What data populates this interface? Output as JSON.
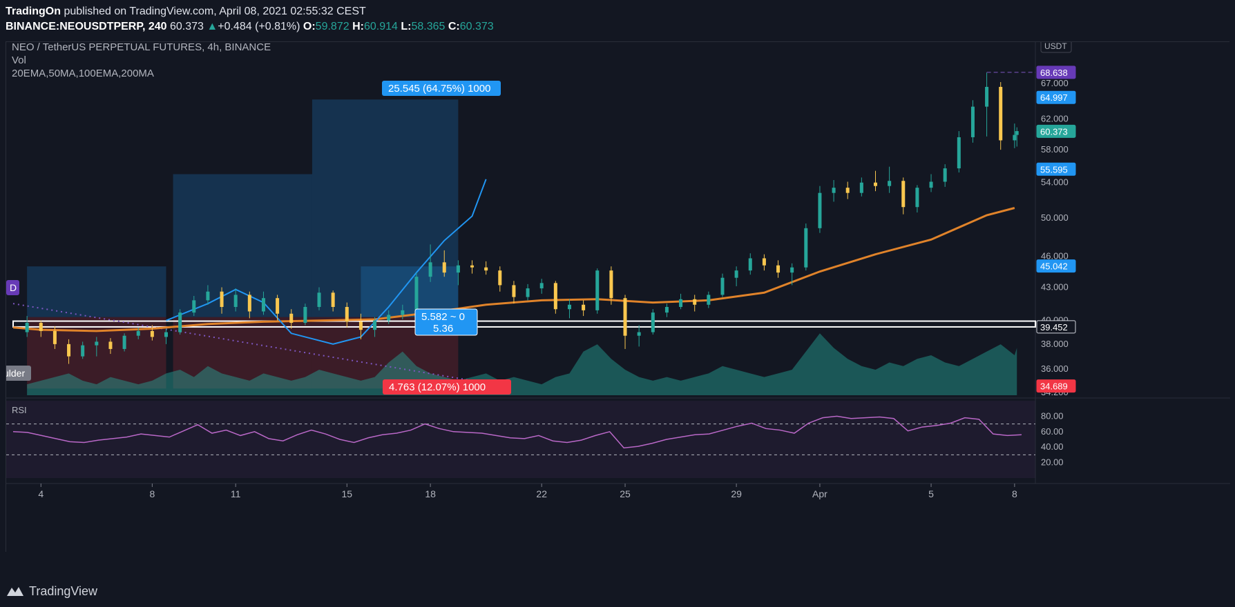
{
  "header": {
    "publisher": "TradingOn",
    "published_text": "published on TradingView.com, April 08, 2021 02:55:32 CEST",
    "symbol": "BINANCE:NEOUSDTPERP, 240",
    "last": "60.373",
    "change_arrow": "▲",
    "change": "+0.484 (+0.81%)",
    "o_label": "O:",
    "o_val": "59.872",
    "h_label": "H:",
    "h_val": "60.914",
    "l_label": "L:",
    "l_val": "58.365",
    "c_label": "C:",
    "c_val": "60.373"
  },
  "legend": {
    "title": "NEO / TetherUS PERPETUAL FUTURES, 4h, BINANCE",
    "vol": "Vol",
    "mas": "20EMA,50MA,100EMA,200MA"
  },
  "currency_button": "USDT",
  "rsi_label": "RSI",
  "d_badge": "D",
  "left_tag": "ulder",
  "footer_brand": "TradingView",
  "colors": {
    "up": "#26a69a",
    "down": "#f9c74f",
    "ema": "#e0832a",
    "blue_curve": "#2196f3",
    "rsi": "#ba68c8",
    "badge_blue": "#2196f3",
    "badge_red": "#f23645",
    "badge_purple": "#673ab7"
  },
  "chart_data": {
    "type": "candlestick",
    "y_ticks": [
      "67.000",
      "62.000",
      "58.000",
      "54.000",
      "50.000",
      "46.000",
      "43.000",
      "40.000",
      "38.000",
      "36.000",
      "34.200"
    ],
    "y_scale": "log",
    "x_ticks": [
      "4",
      "8",
      "11",
      "15",
      "18",
      "22",
      "25",
      "29",
      "Apr",
      "5",
      "8"
    ],
    "price_badges": [
      {
        "label": "68.638",
        "color": "#673ab7"
      },
      {
        "label": "64.997",
        "color": "#2196f3"
      },
      {
        "label": "60.373",
        "color": "#26a69a"
      },
      {
        "label": "55.595",
        "color": "#2196f3"
      },
      {
        "label": "45.042",
        "color": "#2196f3"
      },
      {
        "label": "39.452",
        "color": "#131722"
      },
      {
        "label": "34.689",
        "color": "#f23645"
      }
    ],
    "rsi_ticks": [
      "80.00",
      "60.00",
      "40.00",
      "20.00"
    ],
    "rsi_levels": [
      70,
      30
    ],
    "annotations": {
      "target_label": "25.545 (64.75%) 1000",
      "stop_label": "4.763 (12.07%) 1000",
      "range_label_1": "5.582 ~ 0",
      "range_label_2": "5.36"
    },
    "ema_series": [
      [
        "2021-03-03T00:00",
        39.4
      ],
      [
        "2021-03-04T00:00",
        39.2
      ],
      [
        "2021-03-06T00:00",
        39.1
      ],
      [
        "2021-03-08T00:00",
        39.3
      ],
      [
        "2021-03-10T00:00",
        39.7
      ],
      [
        "2021-03-12T00:00",
        39.9
      ],
      [
        "2021-03-14T00:00",
        40.0
      ],
      [
        "2021-03-16T00:00",
        40.1
      ],
      [
        "2021-03-18T00:00",
        40.7
      ],
      [
        "2021-03-20T00:00",
        41.4
      ],
      [
        "2021-03-22T00:00",
        41.8
      ],
      [
        "2021-03-24T00:00",
        41.9
      ],
      [
        "2021-03-26T00:00",
        41.6
      ],
      [
        "2021-03-28T00:00",
        41.8
      ],
      [
        "2021-03-30T00:00",
        42.5
      ],
      [
        "2021-04-01T00:00",
        44.5
      ],
      [
        "2021-04-03T00:00",
        46.2
      ],
      [
        "2021-04-05T00:00",
        47.7
      ],
      [
        "2021-04-07T00:00",
        50.3
      ],
      [
        "2021-04-08T00:00",
        51.1
      ]
    ],
    "ohlc_series": [
      {
        "t": "2021-03-03T12:00",
        "o": 39.0,
        "h": 40.4,
        "l": 38.6,
        "c": 39.8
      },
      {
        "t": "2021-03-04T00:00",
        "o": 39.8,
        "h": 40.0,
        "l": 38.6,
        "c": 39.1
      },
      {
        "t": "2021-03-04T12:00",
        "o": 39.1,
        "h": 39.5,
        "l": 37.6,
        "c": 38.0
      },
      {
        "t": "2021-03-05T00:00",
        "o": 38.0,
        "h": 38.4,
        "l": 36.4,
        "c": 37.0
      },
      {
        "t": "2021-03-05T12:00",
        "o": 37.0,
        "h": 38.2,
        "l": 36.8,
        "c": 37.9
      },
      {
        "t": "2021-03-06T00:00",
        "o": 37.9,
        "h": 38.6,
        "l": 37.0,
        "c": 38.2
      },
      {
        "t": "2021-03-06T12:00",
        "o": 38.2,
        "h": 38.5,
        "l": 37.2,
        "c": 37.6
      },
      {
        "t": "2021-03-07T00:00",
        "o": 37.6,
        "h": 38.9,
        "l": 37.4,
        "c": 38.7
      },
      {
        "t": "2021-03-07T12:00",
        "o": 38.7,
        "h": 39.4,
        "l": 38.4,
        "c": 39.1
      },
      {
        "t": "2021-03-08T00:00",
        "o": 39.1,
        "h": 39.6,
        "l": 38.3,
        "c": 38.6
      },
      {
        "t": "2021-03-08T12:00",
        "o": 38.6,
        "h": 39.3,
        "l": 38.0,
        "c": 39.0
      },
      {
        "t": "2021-03-09T00:00",
        "o": 39.0,
        "h": 41.0,
        "l": 38.8,
        "c": 40.7
      },
      {
        "t": "2021-03-09T12:00",
        "o": 40.7,
        "h": 42.2,
        "l": 40.4,
        "c": 41.8
      },
      {
        "t": "2021-03-10T00:00",
        "o": 41.8,
        "h": 43.2,
        "l": 41.4,
        "c": 42.6
      },
      {
        "t": "2021-03-10T12:00",
        "o": 42.6,
        "h": 43.0,
        "l": 40.6,
        "c": 41.2
      },
      {
        "t": "2021-03-11T00:00",
        "o": 41.2,
        "h": 42.9,
        "l": 40.8,
        "c": 42.3
      },
      {
        "t": "2021-03-11T12:00",
        "o": 42.3,
        "h": 42.6,
        "l": 40.2,
        "c": 40.8
      },
      {
        "t": "2021-03-12T00:00",
        "o": 40.8,
        "h": 42.6,
        "l": 40.5,
        "c": 42.0
      },
      {
        "t": "2021-03-12T12:00",
        "o": 42.0,
        "h": 42.3,
        "l": 40.0,
        "c": 40.6
      },
      {
        "t": "2021-03-13T00:00",
        "o": 40.6,
        "h": 41.0,
        "l": 39.3,
        "c": 39.8
      },
      {
        "t": "2021-03-13T12:00",
        "o": 39.8,
        "h": 41.5,
        "l": 39.6,
        "c": 41.2
      },
      {
        "t": "2021-03-14T00:00",
        "o": 41.2,
        "h": 43.0,
        "l": 40.9,
        "c": 42.5
      },
      {
        "t": "2021-03-14T12:00",
        "o": 42.5,
        "h": 42.7,
        "l": 40.8,
        "c": 41.2
      },
      {
        "t": "2021-03-15T00:00",
        "o": 41.2,
        "h": 41.6,
        "l": 39.4,
        "c": 39.9
      },
      {
        "t": "2021-03-15T12:00",
        "o": 39.9,
        "h": 40.6,
        "l": 38.4,
        "c": 39.2
      },
      {
        "t": "2021-03-16T00:00",
        "o": 39.2,
        "h": 40.3,
        "l": 38.6,
        "c": 40.0
      },
      {
        "t": "2021-03-16T12:00",
        "o": 40.0,
        "h": 40.9,
        "l": 39.7,
        "c": 40.5
      },
      {
        "t": "2021-03-17T00:00",
        "o": 40.5,
        "h": 41.4,
        "l": 40.1,
        "c": 40.9
      },
      {
        "t": "2021-03-17T12:00",
        "o": 40.9,
        "h": 44.4,
        "l": 40.7,
        "c": 44.0
      },
      {
        "t": "2021-03-18T00:00",
        "o": 44.0,
        "h": 47.2,
        "l": 43.5,
        "c": 45.4
      },
      {
        "t": "2021-03-18T12:00",
        "o": 45.4,
        "h": 46.6,
        "l": 44.0,
        "c": 44.4
      },
      {
        "t": "2021-03-19T00:00",
        "o": 44.4,
        "h": 45.6,
        "l": 43.2,
        "c": 45.1
      },
      {
        "t": "2021-03-19T12:00",
        "o": 45.1,
        "h": 45.6,
        "l": 44.3,
        "c": 44.9
      },
      {
        "t": "2021-03-20T00:00",
        "o": 44.9,
        "h": 45.5,
        "l": 44.2,
        "c": 44.6
      },
      {
        "t": "2021-03-20T12:00",
        "o": 44.6,
        "h": 45.0,
        "l": 42.6,
        "c": 43.2
      },
      {
        "t": "2021-03-21T00:00",
        "o": 43.2,
        "h": 43.6,
        "l": 41.5,
        "c": 42.1
      },
      {
        "t": "2021-03-21T12:00",
        "o": 42.1,
        "h": 43.3,
        "l": 41.8,
        "c": 42.9
      },
      {
        "t": "2021-03-22T00:00",
        "o": 42.9,
        "h": 43.8,
        "l": 42.4,
        "c": 43.4
      },
      {
        "t": "2021-03-22T12:00",
        "o": 43.4,
        "h": 43.6,
        "l": 40.6,
        "c": 41.0
      },
      {
        "t": "2021-03-23T00:00",
        "o": 41.0,
        "h": 41.9,
        "l": 40.2,
        "c": 41.4
      },
      {
        "t": "2021-03-23T12:00",
        "o": 41.4,
        "h": 41.8,
        "l": 40.4,
        "c": 40.9
      },
      {
        "t": "2021-03-24T00:00",
        "o": 40.9,
        "h": 44.8,
        "l": 40.6,
        "c": 44.6
      },
      {
        "t": "2021-03-24T12:00",
        "o": 44.6,
        "h": 45.0,
        "l": 41.4,
        "c": 42.0
      },
      {
        "t": "2021-03-25T00:00",
        "o": 42.0,
        "h": 42.3,
        "l": 37.6,
        "c": 38.7
      },
      {
        "t": "2021-03-25T12:00",
        "o": 38.7,
        "h": 39.6,
        "l": 37.8,
        "c": 39.0
      },
      {
        "t": "2021-03-26T00:00",
        "o": 39.0,
        "h": 41.0,
        "l": 38.8,
        "c": 40.7
      },
      {
        "t": "2021-03-26T12:00",
        "o": 40.7,
        "h": 41.5,
        "l": 40.3,
        "c": 41.2
      },
      {
        "t": "2021-03-27T00:00",
        "o": 41.2,
        "h": 42.4,
        "l": 41.0,
        "c": 41.9
      },
      {
        "t": "2021-03-27T12:00",
        "o": 41.9,
        "h": 42.3,
        "l": 40.8,
        "c": 41.4
      },
      {
        "t": "2021-03-28T00:00",
        "o": 41.4,
        "h": 42.6,
        "l": 41.1,
        "c": 42.3
      },
      {
        "t": "2021-03-28T12:00",
        "o": 42.3,
        "h": 44.3,
        "l": 42.1,
        "c": 43.9
      },
      {
        "t": "2021-03-29T00:00",
        "o": 43.9,
        "h": 45.0,
        "l": 43.1,
        "c": 44.6
      },
      {
        "t": "2021-03-29T12:00",
        "o": 44.6,
        "h": 46.3,
        "l": 44.2,
        "c": 45.8
      },
      {
        "t": "2021-03-30T00:00",
        "o": 45.8,
        "h": 46.2,
        "l": 44.6,
        "c": 45.1
      },
      {
        "t": "2021-03-30T12:00",
        "o": 45.1,
        "h": 45.6,
        "l": 43.9,
        "c": 44.4
      },
      {
        "t": "2021-03-31T00:00",
        "o": 44.4,
        "h": 45.3,
        "l": 43.2,
        "c": 44.9
      },
      {
        "t": "2021-03-31T12:00",
        "o": 44.9,
        "h": 49.4,
        "l": 44.6,
        "c": 48.9
      },
      {
        "t": "2021-04-01T00:00",
        "o": 48.9,
        "h": 53.6,
        "l": 48.4,
        "c": 52.8
      },
      {
        "t": "2021-04-01T12:00",
        "o": 52.8,
        "h": 54.3,
        "l": 51.8,
        "c": 53.4
      },
      {
        "t": "2021-04-02T00:00",
        "o": 53.4,
        "h": 54.1,
        "l": 52.1,
        "c": 52.8
      },
      {
        "t": "2021-04-02T12:00",
        "o": 52.8,
        "h": 54.6,
        "l": 52.4,
        "c": 54.0
      },
      {
        "t": "2021-04-03T00:00",
        "o": 54.0,
        "h": 55.4,
        "l": 53.0,
        "c": 53.6
      },
      {
        "t": "2021-04-03T12:00",
        "o": 53.6,
        "h": 55.9,
        "l": 52.8,
        "c": 54.2
      },
      {
        "t": "2021-04-04T00:00",
        "o": 54.2,
        "h": 54.6,
        "l": 50.4,
        "c": 51.2
      },
      {
        "t": "2021-04-04T12:00",
        "o": 51.2,
        "h": 53.7,
        "l": 50.6,
        "c": 53.4
      },
      {
        "t": "2021-04-05T00:00",
        "o": 53.4,
        "h": 55.0,
        "l": 52.9,
        "c": 54.1
      },
      {
        "t": "2021-04-05T12:00",
        "o": 54.1,
        "h": 56.2,
        "l": 53.5,
        "c": 55.7
      },
      {
        "t": "2021-04-06T00:00",
        "o": 55.7,
        "h": 60.4,
        "l": 55.2,
        "c": 59.6
      },
      {
        "t": "2021-04-06T12:00",
        "o": 59.6,
        "h": 64.6,
        "l": 58.9,
        "c": 63.7
      },
      {
        "t": "2021-04-07T00:00",
        "o": 63.7,
        "h": 68.6,
        "l": 59.7,
        "c": 66.5
      },
      {
        "t": "2021-04-07T12:00",
        "o": 66.5,
        "h": 67.2,
        "l": 58.0,
        "c": 59.2
      },
      {
        "t": "2021-04-08T00:00",
        "o": 59.2,
        "h": 61.4,
        "l": 58.2,
        "c": 59.9
      },
      {
        "t": "2021-04-08T02:00",
        "o": 59.9,
        "h": 60.9,
        "l": 58.4,
        "c": 60.4
      }
    ],
    "volume_series": [
      3,
      4,
      5,
      6,
      4,
      3,
      5,
      4,
      3,
      4,
      6,
      7,
      5,
      8,
      6,
      5,
      4,
      6,
      5,
      4,
      5,
      7,
      6,
      5,
      4,
      5,
      9,
      12,
      8,
      6,
      5,
      4,
      5,
      6,
      4,
      5,
      4,
      3,
      5,
      6,
      12,
      14,
      10,
      7,
      5,
      4,
      5,
      4,
      5,
      6,
      8,
      7,
      6,
      5,
      6,
      7,
      12,
      17,
      13,
      10,
      8,
      7,
      9,
      8,
      10,
      11,
      9,
      8,
      10,
      12,
      14,
      11,
      13,
      9,
      6
    ],
    "rsi_series": [
      60,
      59,
      55,
      51,
      47,
      46,
      49,
      51,
      53,
      57,
      55,
      53,
      61,
      69,
      58,
      62,
      55,
      60,
      51,
      48,
      56,
      62,
      57,
      50,
      46,
      52,
      56,
      58,
      62,
      70,
      64,
      60,
      59,
      58,
      55,
      52,
      51,
      55,
      48,
      46,
      49,
      55,
      60,
      39,
      41,
      45,
      50,
      53,
      56,
      57,
      62,
      67,
      71,
      64,
      62,
      58,
      71,
      78,
      80,
      77,
      78,
      79,
      77,
      61,
      66,
      68,
      71,
      78,
      76,
      57,
      55,
      56
    ]
  }
}
